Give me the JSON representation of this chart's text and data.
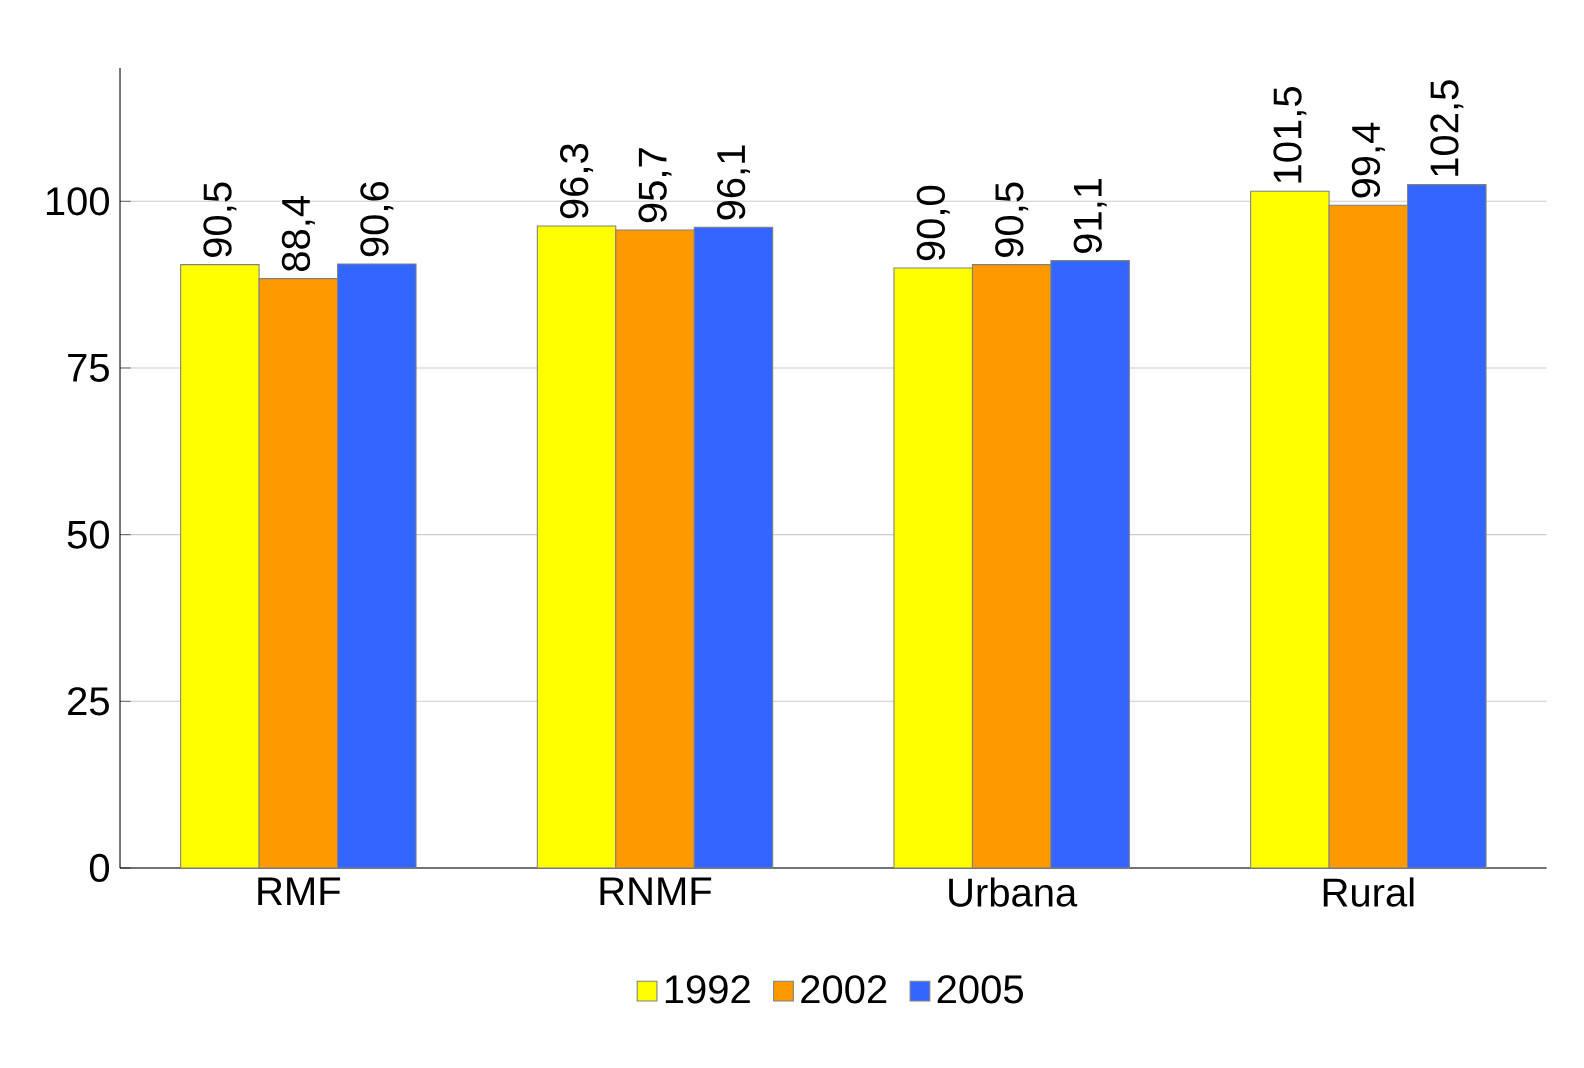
{
  "chart_data": {
    "type": "bar",
    "categories": [
      "RMF",
      "RNMF",
      "Urbana",
      "Rural"
    ],
    "series": [
      {
        "name": "1992",
        "color": "#ffff00",
        "values": [
          90.5,
          96.3,
          90.0,
          101.5
        ],
        "value_labels": [
          "90,5",
          "96,3",
          "90,0",
          "101,5"
        ]
      },
      {
        "name": "2002",
        "color": "#ff9900",
        "values": [
          88.4,
          95.7,
          90.5,
          99.4
        ],
        "value_labels": [
          "88,4",
          "95,7",
          "90,5",
          "99,4"
        ]
      },
      {
        "name": "2005",
        "color": "#3366ff",
        "values": [
          90.6,
          96.1,
          91.1,
          102.5
        ],
        "value_labels": [
          "90,6",
          "96,1",
          "91,1",
          "102,5"
        ]
      }
    ],
    "ylim": [
      0,
      120
    ],
    "yticks": [
      0,
      25,
      50,
      75,
      100
    ],
    "grid": "y",
    "legend": "bottom"
  }
}
